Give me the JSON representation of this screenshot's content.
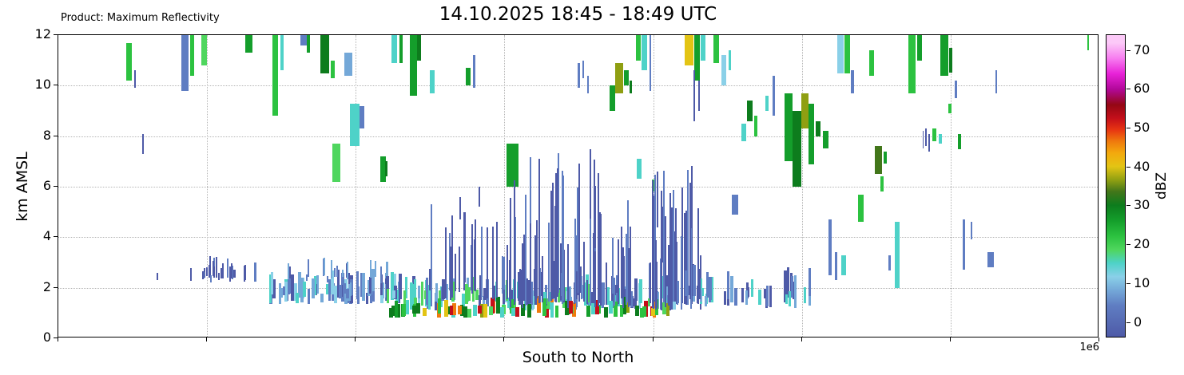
{
  "chart_data": {
    "type": "heatmap",
    "title": "14.10.2025 18:45 - 18:49 UTC",
    "product_label": "Product: Maximum Reflectivity",
    "xlabel": "South to North",
    "ylabel": "km AMSL",
    "x_offset_label": "1e6",
    "xlim": [
      0,
      1.4
    ],
    "ylim": [
      0,
      12
    ],
    "yticks": [
      0,
      2,
      4,
      6,
      8,
      10,
      12
    ],
    "xgrid_step": 0.2,
    "grid": true,
    "colorbar": {
      "label": "dBZ",
      "ticks": [
        0,
        10,
        20,
        30,
        40,
        50,
        60,
        70
      ],
      "min": -4,
      "max": 74,
      "stops": [
        [
          -4,
          "#4e5aa7"
        ],
        [
          4,
          "#5f7dc2"
        ],
        [
          8,
          "#74a8d8"
        ],
        [
          11.5,
          "#8ad0e8"
        ],
        [
          15,
          "#4ed2c8"
        ],
        [
          18.5,
          "#4fd65e"
        ],
        [
          22,
          "#2cc240"
        ],
        [
          26,
          "#149e2b"
        ],
        [
          30,
          "#0d7c1d"
        ],
        [
          33.5,
          "#42761a"
        ],
        [
          36.5,
          "#8f9f12"
        ],
        [
          40,
          "#e3c414"
        ],
        [
          43.5,
          "#f3a90d"
        ],
        [
          46.5,
          "#ef7b0d"
        ],
        [
          49.5,
          "#e73512"
        ],
        [
          52.5,
          "#c40f1a"
        ],
        [
          56,
          "#940714"
        ],
        [
          60,
          "#b2089a"
        ],
        [
          64,
          "#e822d8"
        ],
        [
          68,
          "#f77df0"
        ],
        [
          72,
          "#fcc9f8"
        ]
      ]
    },
    "columns": [
      [
        0.095,
        0.008,
        10.2,
        11.7,
        24
      ],
      [
        0.103,
        0.003,
        9.9,
        10.6,
        3
      ],
      [
        0.114,
        0.002,
        7.3,
        8.1,
        3
      ],
      [
        0.133,
        0.002,
        2.3,
        2.6,
        3
      ],
      [
        0.17,
        0.01,
        9.8,
        12,
        6
      ],
      [
        0.18,
        0.006,
        10.4,
        12,
        24
      ],
      [
        0.196,
        0.008,
        10.8,
        12,
        20
      ],
      [
        0.203,
        0.003,
        2.4,
        2.9,
        3
      ],
      [
        0.256,
        0.01,
        11.3,
        12,
        26
      ],
      [
        0.292,
        0.008,
        8.8,
        12,
        24
      ],
      [
        0.301,
        0.005,
        10.6,
        12,
        16
      ],
      [
        0.33,
        0.01,
        11.6,
        12,
        6
      ],
      [
        0.336,
        0.004,
        11.3,
        12,
        26
      ],
      [
        0.358,
        0.012,
        10.5,
        12,
        30
      ],
      [
        0.369,
        0.006,
        10.3,
        11.0,
        24
      ],
      [
        0.39,
        0.01,
        10.4,
        11.3,
        9
      ],
      [
        0.399,
        0.013,
        7.6,
        9.3,
        16
      ],
      [
        0.408,
        0.007,
        8.3,
        9.2,
        5
      ],
      [
        0.374,
        0.01,
        6.2,
        7.7,
        20
      ],
      [
        0.437,
        0.008,
        6.2,
        7.2,
        26
      ],
      [
        0.441,
        0.004,
        6.4,
        7.0,
        31
      ],
      [
        0.452,
        0.007,
        10.9,
        12,
        16
      ],
      [
        0.461,
        0.005,
        10.9,
        12,
        26
      ],
      [
        0.478,
        0.01,
        9.6,
        12,
        26
      ],
      [
        0.485,
        0.006,
        11.0,
        12,
        31
      ],
      [
        0.503,
        0.007,
        9.7,
        10.6,
        16
      ],
      [
        0.54,
        0.002,
        4.7,
        5.6,
        3
      ],
      [
        0.546,
        0.003,
        2.2,
        5.0,
        3
      ],
      [
        0.551,
        0.007,
        10.0,
        10.7,
        26
      ],
      [
        0.559,
        0.003,
        9.9,
        11.2,
        5
      ],
      [
        0.566,
        0.002,
        5.2,
        6.0,
        3
      ],
      [
        0.611,
        0.016,
        6.0,
        7.7,
        26
      ],
      [
        0.7,
        0.003,
        9.9,
        10.9,
        5
      ],
      [
        0.706,
        0.002,
        10.3,
        11.0,
        5
      ],
      [
        0.712,
        0.002,
        9.7,
        10.4,
        5
      ],
      [
        0.745,
        0.008,
        9.0,
        10.0,
        26
      ],
      [
        0.754,
        0.011,
        9.7,
        10.9,
        38
      ],
      [
        0.764,
        0.006,
        10.0,
        10.6,
        26
      ],
      [
        0.77,
        0.004,
        9.7,
        10.2,
        31
      ],
      [
        0.78,
        0.006,
        11.0,
        12,
        23
      ],
      [
        0.788,
        0.008,
        10.6,
        12,
        16
      ],
      [
        0.796,
        0.003,
        9.8,
        12,
        6
      ],
      [
        0.781,
        0.007,
        6.3,
        7.1,
        16
      ],
      [
        0.8,
        0.004,
        5.8,
        6.3,
        24
      ],
      [
        0.806,
        0.002,
        4.4,
        6.6,
        3
      ],
      [
        0.812,
        0.002,
        3.0,
        5.2,
        3
      ],
      [
        0.848,
        0.012,
        10.8,
        12,
        41
      ],
      [
        0.859,
        0.007,
        10.2,
        12,
        26
      ],
      [
        0.867,
        0.006,
        11.0,
        12,
        16
      ],
      [
        0.855,
        0.002,
        8.6,
        10.6,
        3
      ],
      [
        0.862,
        0.002,
        9.0,
        10.2,
        3
      ],
      [
        0.885,
        0.007,
        10.9,
        12,
        23
      ],
      [
        0.895,
        0.007,
        10.0,
        11.2,
        12
      ],
      [
        0.903,
        0.004,
        10.6,
        11.4,
        16
      ],
      [
        0.91,
        0.008,
        4.9,
        5.7,
        6
      ],
      [
        0.922,
        0.007,
        7.8,
        8.5,
        16
      ],
      [
        0.93,
        0.007,
        8.6,
        9.4,
        30
      ],
      [
        0.938,
        0.004,
        8.0,
        8.8,
        24
      ],
      [
        0.953,
        0.005,
        9.0,
        9.6,
        16
      ],
      [
        0.962,
        0.003,
        8.8,
        10.4,
        5
      ],
      [
        0.982,
        0.011,
        7.0,
        9.7,
        26
      ],
      [
        0.993,
        0.012,
        6.0,
        9.0,
        31
      ],
      [
        1.004,
        0.01,
        8.3,
        9.7,
        38
      ],
      [
        1.013,
        0.008,
        6.9,
        9.3,
        26
      ],
      [
        1.022,
        0.006,
        8.0,
        8.6,
        30
      ],
      [
        1.032,
        0.008,
        7.5,
        8.2,
        26
      ],
      [
        1.038,
        0.004,
        2.5,
        4.7,
        5
      ],
      [
        1.046,
        0.004,
        2.3,
        3.4,
        5
      ],
      [
        1.056,
        0.007,
        2.5,
        3.3,
        16
      ],
      [
        1.052,
        0.008,
        10.5,
        12,
        12
      ],
      [
        1.061,
        0.007,
        10.5,
        12,
        23
      ],
      [
        1.068,
        0.004,
        9.7,
        10.6,
        5
      ],
      [
        1.079,
        0.007,
        4.6,
        5.7,
        23
      ],
      [
        1.094,
        0.007,
        10.4,
        11.4,
        23
      ],
      [
        1.103,
        0.01,
        6.5,
        7.6,
        35
      ],
      [
        1.112,
        0.005,
        6.9,
        7.4,
        26
      ],
      [
        1.108,
        0.004,
        5.8,
        6.4,
        23
      ],
      [
        1.118,
        0.003,
        2.7,
        3.3,
        5
      ],
      [
        1.128,
        0.006,
        2.0,
        4.6,
        16
      ],
      [
        1.148,
        0.009,
        9.7,
        12,
        23
      ],
      [
        1.158,
        0.006,
        11.0,
        12,
        26
      ],
      [
        1.163,
        0.002,
        7.5,
        8.2,
        3
      ],
      [
        1.167,
        0.002,
        7.6,
        8.3,
        3
      ],
      [
        1.171,
        0.002,
        7.4,
        8.1,
        3
      ],
      [
        1.178,
        0.006,
        7.8,
        8.3,
        23
      ],
      [
        1.186,
        0.004,
        7.7,
        8.1,
        16
      ],
      [
        1.192,
        0.011,
        10.4,
        12,
        26
      ],
      [
        1.2,
        0.005,
        10.5,
        11.5,
        31
      ],
      [
        1.207,
        0.003,
        9.5,
        10.2,
        5
      ],
      [
        1.199,
        0.004,
        8.9,
        9.3,
        23
      ],
      [
        1.212,
        0.004,
        7.5,
        8.1,
        26
      ],
      [
        1.218,
        0.004,
        2.7,
        4.7,
        5
      ],
      [
        1.228,
        0.003,
        3.9,
        4.6,
        5
      ],
      [
        1.254,
        0.008,
        2.8,
        3.4,
        5
      ],
      [
        1.261,
        0.002,
        9.7,
        10.6,
        5
      ],
      [
        1.385,
        0.003,
        11.4,
        12,
        23
      ]
    ],
    "noise_bands": [
      {
        "seed": 11,
        "x0": 0.155,
        "x1": 0.285,
        "count": 26,
        "base": [
          2.2,
          2.5
        ],
        "height": [
          0.25,
          0.85
        ],
        "w": 0.0025,
        "dbz": [
          2,
          2,
          2,
          5
        ]
      },
      {
        "seed": 22,
        "x0": 0.285,
        "x1": 0.46,
        "count": 70,
        "base": [
          1.35,
          1.8
        ],
        "height": [
          0.35,
          1.2
        ],
        "w": 0.004,
        "dbz": [
          2,
          2,
          5,
          5,
          9,
          13,
          16
        ]
      },
      {
        "seed": 33,
        "x0": 0.3,
        "x1": 0.46,
        "count": 22,
        "base": [
          2.1,
          2.5
        ],
        "height": [
          0.2,
          0.8
        ],
        "w": 0.0025,
        "dbz": [
          2,
          5,
          9
        ]
      },
      {
        "seed": 44,
        "x0": 0.44,
        "x1": 0.83,
        "count": 150,
        "base": [
          1.1,
          1.6
        ],
        "height": [
          0.3,
          1.1
        ],
        "w": 0.004,
        "dbz": [
          2,
          2,
          5,
          9,
          13,
          16,
          16,
          20
        ]
      },
      {
        "seed": 55,
        "x0": 0.44,
        "x1": 0.82,
        "count": 70,
        "base": [
          0.8,
          1.0
        ],
        "height": [
          0.3,
          0.7
        ],
        "w": 0.005,
        "dbz": [
          16,
          20,
          24,
          27,
          31,
          38,
          41,
          47,
          24,
          31,
          53,
          16
        ]
      },
      {
        "seed": 66,
        "x0": 0.6,
        "x1": 0.77,
        "count": 80,
        "base": [
          1.2,
          1.8
        ],
        "height": [
          0.8,
          5.8
        ],
        "w": 0.0022,
        "dbz": [
          2,
          2,
          2,
          5
        ]
      },
      {
        "seed": 77,
        "x0": 0.795,
        "x1": 0.865,
        "count": 40,
        "base": [
          1.1,
          1.6
        ],
        "height": [
          0.8,
          5.5
        ],
        "w": 0.0022,
        "dbz": [
          2,
          2,
          5
        ]
      },
      {
        "seed": 88,
        "x0": 0.83,
        "x1": 1.02,
        "count": 45,
        "base": [
          1.2,
          1.7
        ],
        "height": [
          0.3,
          1.3
        ],
        "w": 0.0035,
        "dbz": [
          2,
          2,
          5,
          9,
          16
        ]
      },
      {
        "seed": 99,
        "x0": 0.5,
        "x1": 0.6,
        "count": 20,
        "base": [
          1.5,
          2.0
        ],
        "height": [
          0.8,
          3.5
        ],
        "w": 0.0022,
        "dbz": [
          2,
          5
        ]
      }
    ]
  }
}
